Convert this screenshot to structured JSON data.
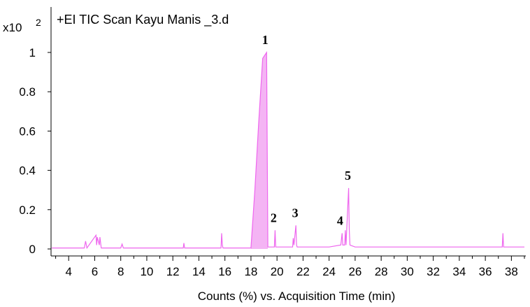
{
  "chart_data": {
    "type": "line",
    "title": "+EI TIC Scan Kayu Manis _3.d",
    "xlabel": "Counts (%) vs. Acquisition Time (min)",
    "ylabel": "",
    "y_multiplier_base": "x10",
    "y_multiplier_exponent": "2",
    "xlim": [
      2.7,
      39.0
    ],
    "ylim": [
      -0.02,
      1.07
    ],
    "x_ticks": [
      "4",
      "6",
      "8",
      "10",
      "12",
      "14",
      "16",
      "18",
      "20",
      "22",
      "24",
      "26",
      "28",
      "30",
      "32",
      "34",
      "36",
      "38"
    ],
    "y_ticks": [
      "0",
      "0.2",
      "0.4",
      "0.6",
      "0.8",
      "1"
    ],
    "series": [
      {
        "color": "#ee66ee",
        "fill": "#f4b4f4",
        "x": [
          2.7,
          5.2,
          5.3,
          5.4,
          6.1,
          6.15,
          6.2,
          6.35,
          6.4,
          6.5,
          8.0,
          8.1,
          8.2,
          12.8,
          12.85,
          12.9,
          15.7,
          15.75,
          15.8,
          15.85,
          18.0,
          18.3,
          18.6,
          18.9,
          19.2,
          19.25,
          19.3,
          19.8,
          19.85,
          19.9,
          21.2,
          21.25,
          21.3,
          21.45,
          21.5,
          21.55,
          24.0,
          24.9,
          25.0,
          25.05,
          25.2,
          25.25,
          25.3,
          25.5,
          25.55,
          25.6,
          26.0,
          30.0,
          31.0,
          33.6,
          37.3,
          37.35,
          37.4,
          39.0
        ],
        "y": [
          0.005,
          0.005,
          0.04,
          0.005,
          0.07,
          0.02,
          0.06,
          0.02,
          0.06,
          0.005,
          0.005,
          0.025,
          0.005,
          0.005,
          0.03,
          0.005,
          0.005,
          0.08,
          0.02,
          0.005,
          0.005,
          0.3,
          0.65,
          0.97,
          1.0,
          0.5,
          0.01,
          0.01,
          0.095,
          0.01,
          0.01,
          0.055,
          0.02,
          0.12,
          0.02,
          0.01,
          0.01,
          0.02,
          0.08,
          0.02,
          0.02,
          0.095,
          0.02,
          0.31,
          0.1,
          0.02,
          0.01,
          0.01,
          0.01,
          0.01,
          0.01,
          0.08,
          0.01,
          0.01
        ]
      }
    ],
    "peak_labels": [
      {
        "text": "1",
        "x": 19.2,
        "y": 1.0
      },
      {
        "text": "2",
        "x": 19.85,
        "y": 0.095
      },
      {
        "text": "3",
        "x": 21.5,
        "y": 0.12
      },
      {
        "text": "4",
        "x": 24.95,
        "y": 0.08
      },
      {
        "text": "5",
        "x": 25.55,
        "y": 0.31
      }
    ]
  }
}
